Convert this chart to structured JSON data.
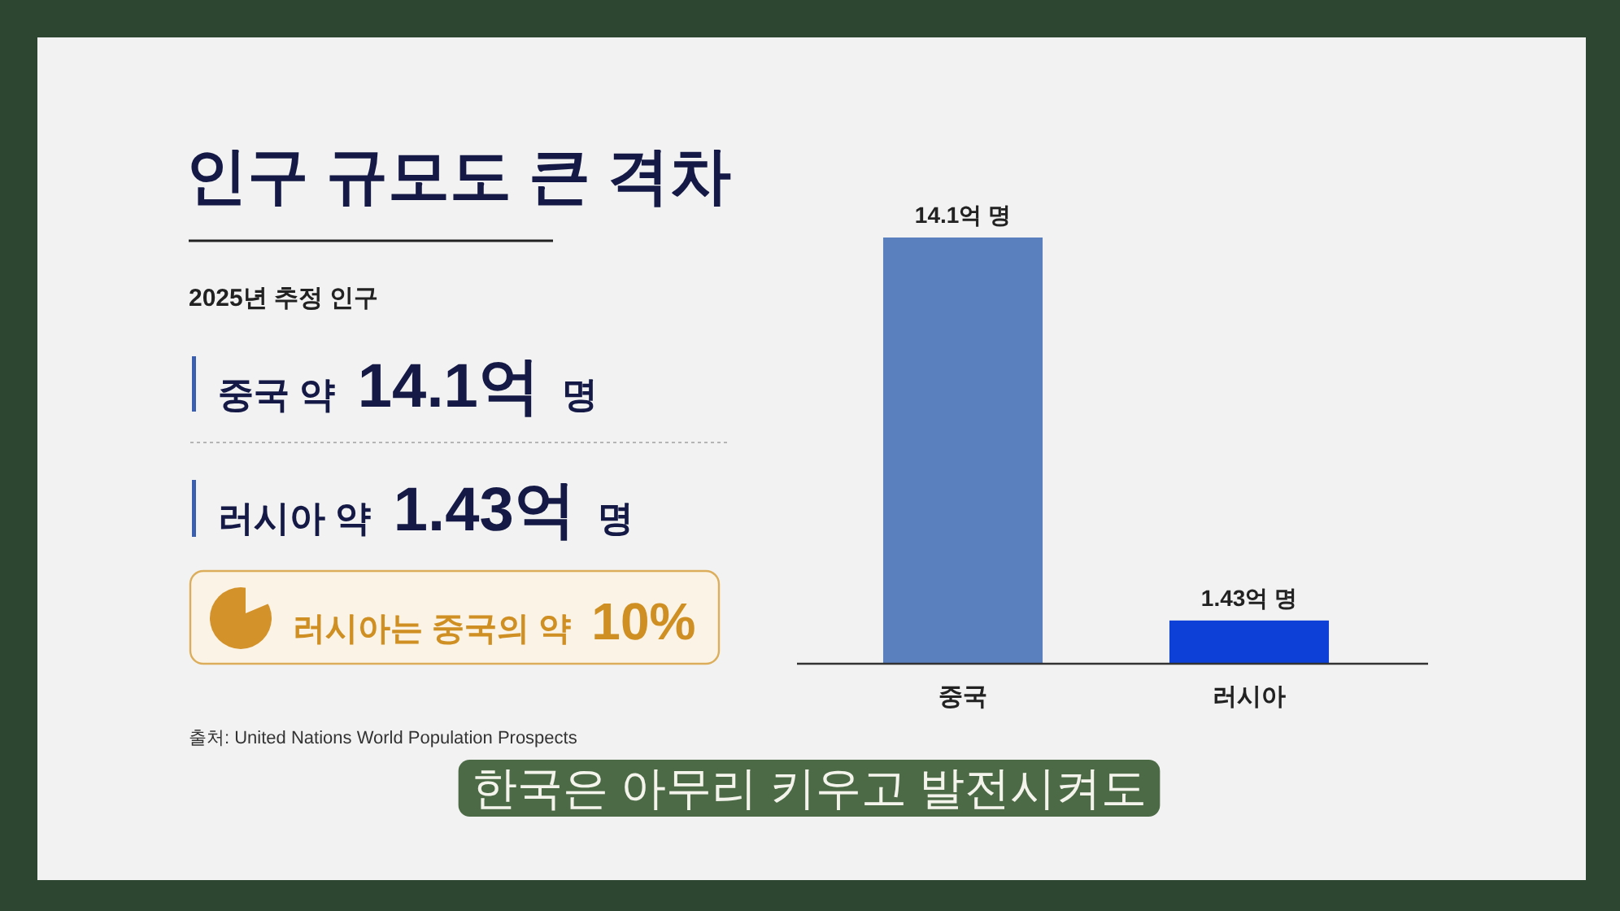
{
  "chart_data": {
    "type": "bar",
    "title": "인구 규모도 큰 격차",
    "subtitle": "2025년 추정 인구",
    "categories": [
      "중국",
      "러시아"
    ],
    "values": [
      14.1,
      1.43
    ],
    "colors": [
      "#5b80be",
      "#0c40d6"
    ],
    "value_labels": [
      "14.1억 명",
      "1.43억 명"
    ],
    "annotations": [
      "중국 약 **14.1억** 명",
      "러시아 약 **1.43억** 명",
      "러시아는 중국의 약 **10%**",
      "출처: United Nations World Population Prospects",
      "한국은 아무리 키우고 발전시켜도"
    ]
  }
}
